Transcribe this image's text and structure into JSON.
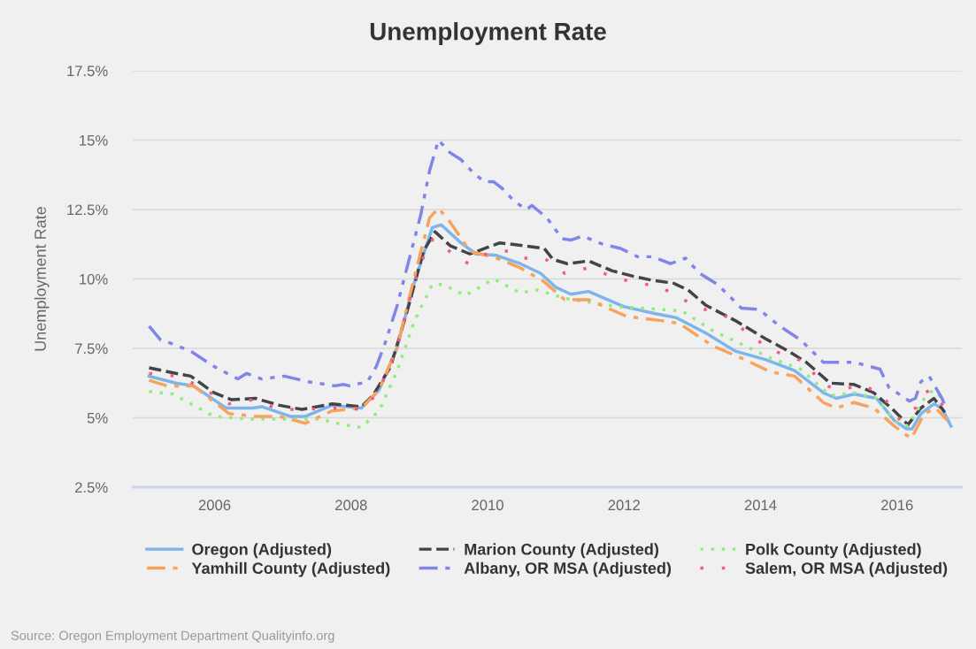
{
  "chart_data": {
    "type": "line",
    "title": "Unemployment Rate",
    "ylabel": "Unemployment Rate",
    "xlim": [
      2004.8,
      2016.95
    ],
    "xticks": [
      2006,
      2008,
      2010,
      2012,
      2014,
      2016
    ],
    "ylim": [
      2.5,
      17.5
    ],
    "yticks": [
      {
        "value": 2.5,
        "label": "2.5%"
      },
      {
        "value": 5,
        "label": "5%"
      },
      {
        "value": 7.5,
        "label": "7.5%"
      },
      {
        "value": 10,
        "label": "10%"
      },
      {
        "value": 12.5,
        "label": "12.5%"
      },
      {
        "value": 15,
        "label": "15%"
      },
      {
        "value": 17.5,
        "label": "17.5%"
      }
    ],
    "grid": "y",
    "legend": "bottom",
    "annotations": [
      "Source: Oregon Employment Department Qualityinfo.org"
    ],
    "series": [
      {
        "name": "Oregon (Adjusted)",
        "color": "#7cb5ec",
        "line_style": "solid",
        "x": [
          2005.04,
          2005.43,
          2005.69,
          2006.17,
          2006.56,
          2006.69,
          2007.11,
          2007.33,
          2007.72,
          2008.15,
          2008.41,
          2008.67,
          2008.93,
          2009.19,
          2009.32,
          2009.61,
          2009.83,
          2010.13,
          2010.48,
          2010.78,
          2011.0,
          2011.22,
          2011.48,
          2012.0,
          2012.46,
          2012.77,
          2013.2,
          2013.63,
          2014.07,
          2014.5,
          2014.92,
          2015.11,
          2015.37,
          2015.7,
          2015.96,
          2016.14,
          2016.22,
          2016.35,
          2016.54,
          2016.66,
          2016.79
        ],
        "values": [
          6.5,
          6.25,
          6.15,
          5.35,
          5.35,
          5.4,
          5.05,
          5.05,
          5.45,
          5.35,
          6.0,
          7.5,
          9.9,
          11.85,
          11.95,
          11.3,
          10.9,
          10.85,
          10.55,
          10.2,
          9.7,
          9.45,
          9.55,
          9.0,
          8.75,
          8.6,
          8.05,
          7.4,
          7.1,
          6.7,
          5.9,
          5.7,
          5.85,
          5.7,
          4.9,
          4.6,
          4.6,
          5.15,
          5.5,
          5.35,
          4.7
        ]
      },
      {
        "name": "Marion County (Adjusted)",
        "color": "#434348",
        "line_style": "dashed",
        "x": [
          2005.04,
          2005.43,
          2005.65,
          2005.99,
          2006.25,
          2006.6,
          2006.95,
          2007.28,
          2007.72,
          2008.15,
          2008.32,
          2008.58,
          2008.84,
          2009.06,
          2009.23,
          2009.45,
          2009.74,
          2009.96,
          2010.18,
          2010.52,
          2010.83,
          2010.96,
          2011.17,
          2011.48,
          2011.82,
          2012.13,
          2012.42,
          2012.72,
          2012.94,
          2013.2,
          2013.63,
          2014.07,
          2014.41,
          2014.67,
          2015.02,
          2015.37,
          2015.66,
          2015.96,
          2016.16,
          2016.35,
          2016.54,
          2016.7
        ],
        "values": [
          6.8,
          6.6,
          6.5,
          5.9,
          5.65,
          5.7,
          5.45,
          5.3,
          5.5,
          5.4,
          5.8,
          6.85,
          9.0,
          11.0,
          11.7,
          11.2,
          10.9,
          11.1,
          11.3,
          11.2,
          11.1,
          10.7,
          10.55,
          10.65,
          10.3,
          10.1,
          9.95,
          9.85,
          9.6,
          9.05,
          8.5,
          7.85,
          7.4,
          7.0,
          6.25,
          6.2,
          5.9,
          5.25,
          4.75,
          5.35,
          5.7,
          5.2
        ]
      },
      {
        "name": "Polk County (Adjusted)",
        "color": "#90ed7d",
        "line_style": "dotted",
        "x": [
          2005.04,
          2005.39,
          2005.99,
          2006.51,
          2006.95,
          2007.54,
          2007.89,
          2008.15,
          2008.41,
          2008.67,
          2008.93,
          2009.19,
          2009.35,
          2009.67,
          2010.09,
          2010.48,
          2010.74,
          2011.0,
          2011.13,
          2011.91,
          2012.55,
          2012.85,
          2013.29,
          2013.72,
          2014.15,
          2014.59,
          2015.02,
          2015.37,
          2015.7,
          2015.96,
          2016.16,
          2016.4,
          2016.53,
          2016.66
        ],
        "values": [
          5.95,
          5.85,
          5.05,
          4.95,
          4.95,
          4.95,
          4.75,
          4.65,
          5.25,
          6.65,
          8.5,
          9.8,
          9.8,
          9.4,
          10.0,
          9.5,
          9.6,
          9.4,
          9.3,
          9.0,
          8.9,
          8.85,
          8.15,
          7.65,
          7.15,
          6.75,
          5.8,
          5.9,
          5.7,
          4.9,
          4.7,
          5.7,
          6.0,
          5.7
        ]
      },
      {
        "name": "Yamhill County (Adjusted)",
        "color": "#f7a35c",
        "line_style": "dashdot",
        "x": [
          2005.04,
          2005.3,
          2005.69,
          2006.21,
          2006.6,
          2006.95,
          2007.33,
          2007.72,
          2008.15,
          2008.41,
          2008.67,
          2008.93,
          2009.15,
          2009.28,
          2009.45,
          2009.74,
          2010.13,
          2010.48,
          2010.83,
          2011.13,
          2011.48,
          2012.04,
          2012.55,
          2012.81,
          2013.29,
          2013.72,
          2014.15,
          2014.5,
          2014.92,
          2015.11,
          2015.37,
          2015.66,
          2015.96,
          2016.21,
          2016.4,
          2016.57,
          2016.74
        ],
        "values": [
          6.35,
          6.15,
          6.15,
          5.15,
          5.05,
          5.05,
          4.8,
          5.25,
          5.35,
          6.0,
          7.5,
          10.1,
          12.2,
          12.55,
          12.05,
          11.0,
          10.75,
          10.4,
          9.9,
          9.25,
          9.25,
          8.65,
          8.5,
          8.4,
          7.6,
          7.15,
          6.65,
          6.5,
          5.55,
          5.35,
          5.55,
          5.35,
          4.7,
          4.25,
          5.15,
          5.35,
          4.9
        ]
      },
      {
        "name": "Albany, OR MSA (Adjusted)",
        "color": "#8085e9",
        "line_style": "dashdotdot",
        "x": [
          2005.04,
          2005.21,
          2005.34,
          2005.65,
          2005.99,
          2006.34,
          2006.47,
          2006.69,
          2007.02,
          2007.37,
          2007.76,
          2007.89,
          2007.98,
          2008.24,
          2008.37,
          2008.5,
          2008.67,
          2008.84,
          2009.02,
          2009.15,
          2009.28,
          2009.45,
          2009.61,
          2009.8,
          2009.96,
          2010.09,
          2010.22,
          2010.39,
          2010.57,
          2010.65,
          2010.87,
          2011.09,
          2011.22,
          2011.39,
          2011.69,
          2011.95,
          2012.2,
          2012.42,
          2012.68,
          2012.9,
          2013.11,
          2013.37,
          2013.72,
          2013.98,
          2014.28,
          2014.59,
          2014.92,
          2015.37,
          2015.75,
          2015.88,
          2016.18,
          2016.27,
          2016.35,
          2016.47,
          2016.66,
          2016.7
        ],
        "values": [
          8.3,
          7.8,
          7.7,
          7.4,
          6.85,
          6.4,
          6.6,
          6.4,
          6.5,
          6.3,
          6.15,
          6.2,
          6.15,
          6.3,
          6.85,
          7.7,
          9.0,
          10.6,
          12.3,
          13.9,
          15.0,
          14.55,
          14.3,
          13.8,
          13.5,
          13.5,
          13.25,
          12.8,
          12.5,
          12.65,
          12.2,
          11.45,
          11.4,
          11.55,
          11.25,
          11.1,
          10.8,
          10.8,
          10.55,
          10.75,
          10.2,
          9.8,
          8.95,
          8.9,
          8.3,
          7.8,
          7.0,
          7.0,
          6.75,
          6.1,
          5.6,
          5.7,
          6.3,
          6.5,
          5.7,
          5.45
        ]
      },
      {
        "name": "Salem, OR MSA (Adjusted)",
        "color": "#f15c80",
        "line_style": "sparse_dotted",
        "x": [
          2005.04,
          2005.43,
          2005.73,
          2006.21,
          2006.56,
          2006.95,
          2007.28,
          2007.8,
          2008.19,
          2008.41,
          2008.67,
          2008.93,
          2009.15,
          2009.28,
          2009.54,
          2009.73,
          2010.05,
          2010.31,
          2010.48,
          2010.83,
          2011.13,
          2011.48,
          2011.82,
          2012.17,
          2012.52,
          2012.68,
          2013.07,
          2013.55,
          2013.85,
          2014.2,
          2014.67,
          2014.89,
          2015.18,
          2015.49,
          2015.79,
          2016.05,
          2016.27,
          2016.35,
          2016.48,
          2016.7
        ],
        "values": [
          6.6,
          6.5,
          6.2,
          5.5,
          5.65,
          5.3,
          5.3,
          5.35,
          5.3,
          6.0,
          7.5,
          9.9,
          11.4,
          11.4,
          10.75,
          10.55,
          11.0,
          11.0,
          10.75,
          10.75,
          10.2,
          10.4,
          10.1,
          9.85,
          9.75,
          9.5,
          9.0,
          8.6,
          7.95,
          7.4,
          7.0,
          6.2,
          6.0,
          6.2,
          5.8,
          4.9,
          5.35,
          5.8,
          6.0,
          5.35
        ]
      }
    ]
  }
}
